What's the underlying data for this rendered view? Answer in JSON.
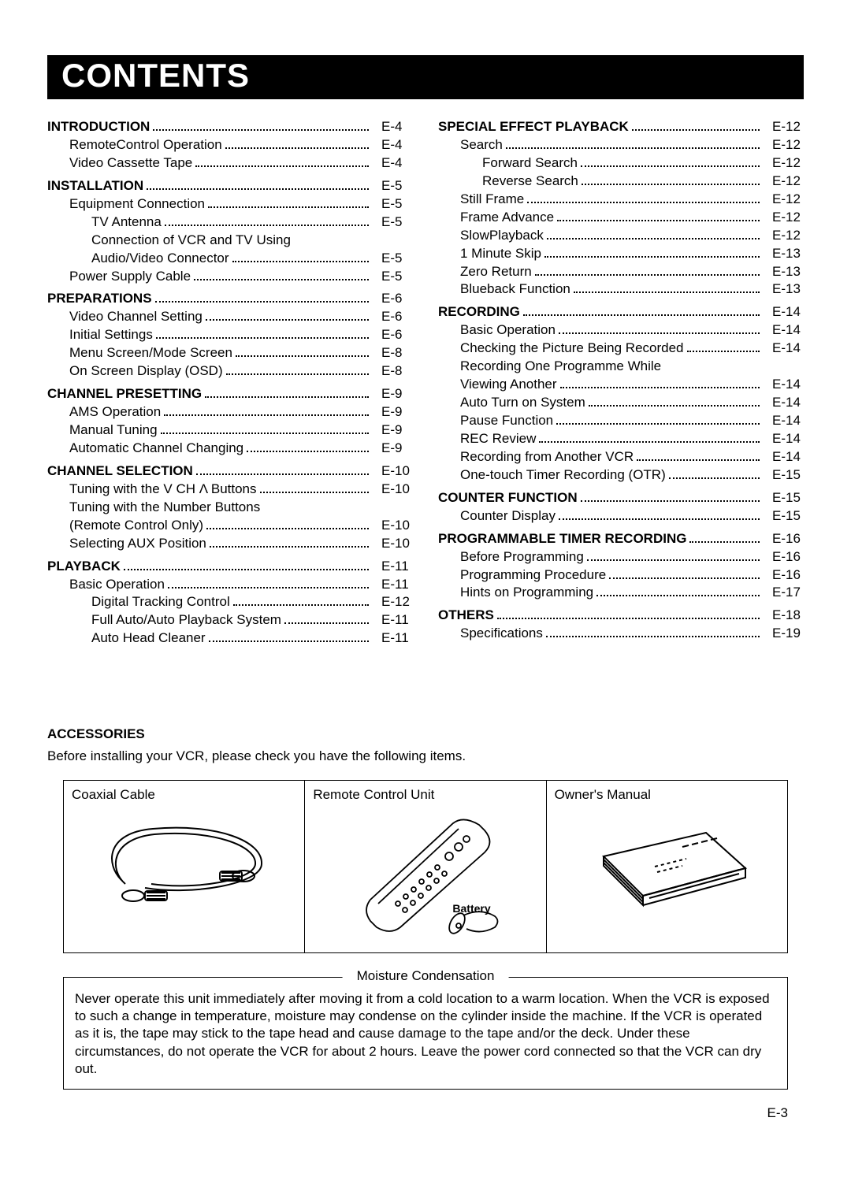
{
  "title": "CONTENTS",
  "page_number": "E-3",
  "columns": [
    [
      {
        "label": "INTRODUCTION",
        "page": "E-4",
        "bold": true,
        "indent": 0,
        "dots": true
      },
      {
        "label": "RemoteControl Operation",
        "page": "E-4",
        "bold": false,
        "indent": 1,
        "dots": true
      },
      {
        "label": "Video Cassette Tape",
        "page": "E-4",
        "bold": false,
        "indent": 1,
        "dots": true,
        "gapAfter": true
      },
      {
        "label": "INSTALLATION",
        "page": "E-5",
        "bold": true,
        "indent": 0,
        "dots": true
      },
      {
        "label": "Equipment Connection",
        "page": "E-5",
        "bold": false,
        "indent": 1,
        "dots": true
      },
      {
        "label": "TV Antenna",
        "page": "E-5",
        "bold": false,
        "indent": 2,
        "dots": true
      },
      {
        "label": "Connection of VCR and TV Using",
        "page": "",
        "bold": false,
        "indent": 2,
        "dots": false
      },
      {
        "label": "Audio/Video Connector",
        "page": "E-5",
        "bold": false,
        "indent": 2,
        "dots": true
      },
      {
        "label": "Power Supply Cable",
        "page": "E-5",
        "bold": false,
        "indent": 1,
        "dots": true,
        "gapAfter": true
      },
      {
        "label": "PREPARATIONS",
        "page": "E-6",
        "bold": true,
        "indent": 0,
        "dots": true
      },
      {
        "label": "Video Channel Setting",
        "page": "E-6",
        "bold": false,
        "indent": 1,
        "dots": true
      },
      {
        "label": "Initial Settings",
        "page": "E-6",
        "bold": false,
        "indent": 1,
        "dots": true
      },
      {
        "label": "Menu Screen/Mode Screen",
        "page": "E-8",
        "bold": false,
        "indent": 1,
        "dots": true
      },
      {
        "label": "On Screen Display (OSD)",
        "page": "E-8",
        "bold": false,
        "indent": 1,
        "dots": true,
        "gapAfter": true
      },
      {
        "label": "CHANNEL PRESETTING",
        "page": "E-9",
        "bold": true,
        "indent": 0,
        "dots": true
      },
      {
        "label": "AMS Operation",
        "page": "E-9",
        "bold": false,
        "indent": 1,
        "dots": true
      },
      {
        "label": "Manual Tuning",
        "page": "E-9",
        "bold": false,
        "indent": 1,
        "dots": true
      },
      {
        "label": "Automatic Channel Changing",
        "page": "E-9",
        "bold": false,
        "indent": 1,
        "dots": true,
        "gapAfter": true
      },
      {
        "label": "CHANNEL SELECTION",
        "page": "E-10",
        "bold": true,
        "indent": 0,
        "dots": true
      },
      {
        "label": "Tuning with the V CH Λ Buttons",
        "page": "E-10",
        "bold": false,
        "indent": 1,
        "dots": true
      },
      {
        "label": "Tuning with the Number Buttons",
        "page": "",
        "bold": false,
        "indent": 1,
        "dots": false
      },
      {
        "label": "(Remote Control Only)",
        "page": "E-10",
        "bold": false,
        "indent": 1,
        "dots": true
      },
      {
        "label": "Selecting AUX Position",
        "page": "E-10",
        "bold": false,
        "indent": 1,
        "dots": true,
        "gapAfter": true
      },
      {
        "label": "PLAYBACK",
        "page": "E-11",
        "bold": true,
        "indent": 0,
        "dots": true
      },
      {
        "label": "Basic Operation",
        "page": "E-11",
        "bold": false,
        "indent": 1,
        "dots": true
      },
      {
        "label": "Digital Tracking Control",
        "page": "E-12",
        "bold": false,
        "indent": 2,
        "dots": true
      },
      {
        "label": "Full Auto/Auto Playback System",
        "page": "E-11",
        "bold": false,
        "indent": 2,
        "dots": true
      },
      {
        "label": "Auto Head Cleaner",
        "page": "E-11",
        "bold": false,
        "indent": 2,
        "dots": true
      }
    ],
    [
      {
        "label": "SPECIAL EFFECT PLAYBACK",
        "page": "E-12",
        "bold": true,
        "indent": 0,
        "dots": true
      },
      {
        "label": "Search",
        "page": "E-12",
        "bold": false,
        "indent": 1,
        "dots": true
      },
      {
        "label": "Forward Search",
        "page": "E-12",
        "bold": false,
        "indent": 2,
        "dots": true
      },
      {
        "label": "Reverse Search",
        "page": "E-12",
        "bold": false,
        "indent": 2,
        "dots": true
      },
      {
        "label": "Still Frame",
        "page": "E-12",
        "bold": false,
        "indent": 1,
        "dots": true
      },
      {
        "label": "Frame Advance",
        "page": "E-12",
        "bold": false,
        "indent": 1,
        "dots": true
      },
      {
        "label": "SlowPlayback",
        "page": "E-12",
        "bold": false,
        "indent": 1,
        "dots": true
      },
      {
        "label": "1 Minute Skip",
        "page": "E-13",
        "bold": false,
        "indent": 1,
        "dots": true
      },
      {
        "label": "Zero Return",
        "page": "E-13",
        "bold": false,
        "indent": 1,
        "dots": true
      },
      {
        "label": "Blueback Function",
        "page": "E-13",
        "bold": false,
        "indent": 1,
        "dots": true,
        "gapAfter": true
      },
      {
        "label": "RECORDING",
        "page": "E-14",
        "bold": true,
        "indent": 0,
        "dots": true
      },
      {
        "label": "Basic Operation",
        "page": "E-14",
        "bold": false,
        "indent": 1,
        "dots": true
      },
      {
        "label": "Checking the Picture Being Recorded",
        "page": "E-14",
        "bold": false,
        "indent": 1,
        "dots": true
      },
      {
        "label": "Recording One Programme While",
        "page": "",
        "bold": false,
        "indent": 1,
        "dots": false
      },
      {
        "label": "Viewing Another",
        "page": "E-14",
        "bold": false,
        "indent": 1,
        "dots": true
      },
      {
        "label": "Auto Turn on System",
        "page": "E-14",
        "bold": false,
        "indent": 1,
        "dots": true
      },
      {
        "label": "Pause Function",
        "page": "E-14",
        "bold": false,
        "indent": 1,
        "dots": true
      },
      {
        "label": "REC Review",
        "page": "E-14",
        "bold": false,
        "indent": 1,
        "dots": true
      },
      {
        "label": "Recording from Another VCR",
        "page": "E-14",
        "bold": false,
        "indent": 1,
        "dots": true
      },
      {
        "label": "One-touch Timer Recording (OTR)",
        "page": "E-15",
        "bold": false,
        "indent": 1,
        "dots": true,
        "gapAfter": true
      },
      {
        "label": "COUNTER FUNCTION",
        "page": "E-15",
        "bold": true,
        "indent": 0,
        "dots": true
      },
      {
        "label": "Counter Display",
        "page": "E-15",
        "bold": false,
        "indent": 1,
        "dots": true,
        "gapAfter": true
      },
      {
        "label": "PROGRAMMABLE TIMER RECORDING",
        "page": "E-16",
        "bold": true,
        "indent": 0,
        "dots": true
      },
      {
        "label": "Before Programming",
        "page": "E-16",
        "bold": false,
        "indent": 1,
        "dots": true
      },
      {
        "label": "Programming Procedure",
        "page": "E-16",
        "bold": false,
        "indent": 1,
        "dots": true
      },
      {
        "label": "Hints on Programming",
        "page": "E-17",
        "bold": false,
        "indent": 1,
        "dots": true,
        "gapAfter": true
      },
      {
        "label": "OTHERS",
        "page": "E-18",
        "bold": true,
        "indent": 0,
        "dots": true
      },
      {
        "label": "Specifications",
        "page": "E-19",
        "bold": false,
        "indent": 1,
        "dots": true
      }
    ]
  ],
  "accessories": {
    "heading": "ACCESSORIES",
    "intro": "Before installing your VCR, please check you have the following items.",
    "boxes": [
      {
        "label": "Coaxial Cable"
      },
      {
        "label": "Remote Control Unit",
        "battery": "Battery"
      },
      {
        "label": "Owner's Manual"
      }
    ]
  },
  "moisture": {
    "title": "Moisture Condensation",
    "body": "Never operate this unit immediately after moving it from a cold location to a warm location. When the VCR is exposed to such a change in temperature, moisture may condense on the cylinder inside the machine. If the VCR is operated as it is, the tape may stick to the tape head and cause damage to the tape and/or the deck. Under these circumstances, do not operate the VCR for about 2 hours. Leave the power cord connected so that the VCR can dry out."
  }
}
